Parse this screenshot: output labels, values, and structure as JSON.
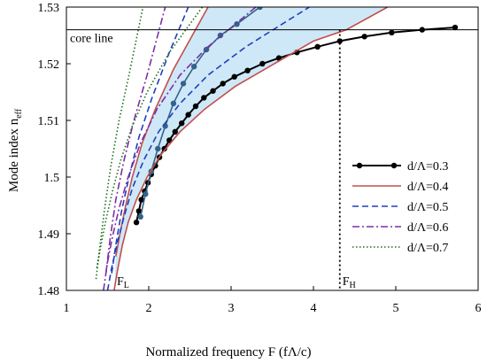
{
  "chart_data": {
    "type": "line",
    "xlabel": "Normalized frequency F (fΛ/c)",
    "ylabel": "Mode index n",
    "ylabel_sub": "eff",
    "xlim": [
      1,
      6
    ],
    "ylim": [
      1.48,
      1.53
    ],
    "xticks": [
      "1",
      "2",
      "3",
      "4",
      "5",
      "6"
    ],
    "yticks": [
      "1.48",
      "1.49",
      "1.5",
      "1.51",
      "1.52",
      "1.53"
    ],
    "grid": false,
    "legend_position": "right",
    "core_line": {
      "y": 1.526,
      "label": "core line"
    },
    "markers": [
      {
        "label": "F",
        "sub": "L",
        "x": 1.58
      },
      {
        "label": "F",
        "sub": "H",
        "x": 4.32
      }
    ],
    "shaded_band": {
      "lower": "d/Λ=0.4 right branch",
      "upper": "d/Λ=0.4 left branch",
      "color": "#cfe8f7"
    },
    "series": [
      {
        "name": "d/Λ=0.3",
        "color": "#000000",
        "style": "solid-marker",
        "x": [
          1.85,
          1.88,
          1.91,
          1.95,
          1.99,
          2.03,
          2.08,
          2.13,
          2.19,
          2.25,
          2.32,
          2.4,
          2.48,
          2.57,
          2.67,
          2.78,
          2.9,
          3.04,
          3.2,
          3.38,
          3.58,
          3.8,
          4.05,
          4.32,
          4.62,
          4.95,
          5.32,
          5.72
        ],
        "y": [
          1.492,
          1.494,
          1.496,
          1.4975,
          1.499,
          1.5005,
          1.502,
          1.5035,
          1.505,
          1.5065,
          1.508,
          1.5095,
          1.511,
          1.5125,
          1.514,
          1.5152,
          1.5165,
          1.5177,
          1.5188,
          1.52,
          1.521,
          1.522,
          1.523,
          1.524,
          1.5248,
          1.5255,
          1.526,
          1.5264
        ]
      },
      {
        "name": "d/Λ=0.3 (left branch)",
        "color": "#34628a",
        "style": "line-marker",
        "x": [
          1.9,
          1.96,
          2.03,
          2.11,
          2.2,
          2.3,
          2.42,
          2.55,
          2.7,
          2.87,
          3.07,
          3.35
        ],
        "y": [
          1.493,
          1.497,
          1.501,
          1.505,
          1.509,
          1.513,
          1.5165,
          1.5195,
          1.5225,
          1.525,
          1.527,
          1.53
        ]
      },
      {
        "name": "d/Λ=0.4",
        "color": "#c0504d",
        "style": "solid",
        "x": [
          1.58,
          1.62,
          1.68,
          1.75,
          1.85,
          1.98,
          2.15,
          2.38,
          2.68,
          3.05,
          3.5,
          4.0,
          4.4,
          4.9
        ],
        "y": [
          1.48,
          1.4835,
          1.488,
          1.492,
          1.496,
          1.5,
          1.504,
          1.508,
          1.512,
          1.516,
          1.5198,
          1.524,
          1.526,
          1.53
        ]
      },
      {
        "name": "d/Λ=0.4 (left branch)",
        "color": "#c0504d",
        "style": "solid",
        "x": [
          1.6,
          1.65,
          1.72,
          1.8,
          1.92,
          2.08,
          2.3,
          2.72
        ],
        "y": [
          1.486,
          1.49,
          1.495,
          1.5,
          1.506,
          1.512,
          1.519,
          1.53
        ]
      },
      {
        "name": "d/Λ=0.5",
        "color": "#1f3fbf",
        "style": "dashed",
        "x": [
          1.5,
          1.55,
          1.62,
          1.7,
          1.8,
          1.94,
          2.12,
          2.38,
          2.72,
          3.18,
          3.95
        ],
        "y": [
          1.48,
          1.484,
          1.4885,
          1.493,
          1.498,
          1.503,
          1.508,
          1.513,
          1.518,
          1.523,
          1.53
        ]
      },
      {
        "name": "d/Λ=0.5 (left branch)",
        "color": "#1f3fbf",
        "style": "dashed",
        "x": [
          1.55,
          1.6,
          1.67,
          1.76,
          1.88,
          2.04,
          2.25,
          2.48
        ],
        "y": [
          1.483,
          1.488,
          1.494,
          1.5,
          1.507,
          1.514,
          1.522,
          1.53
        ]
      },
      {
        "name": "d/Λ=0.6",
        "color": "#7b2fa6",
        "style": "dashdot",
        "x": [
          1.45,
          1.5,
          1.56,
          1.64,
          1.75,
          1.9,
          2.1,
          2.38,
          2.72,
          3.3
        ],
        "y": [
          1.48,
          1.485,
          1.4895,
          1.4945,
          1.5,
          1.506,
          1.512,
          1.518,
          1.523,
          1.53
        ]
      },
      {
        "name": "d/Λ=0.6 (left branch)",
        "color": "#7b2fa6",
        "style": "dashdot",
        "x": [
          1.48,
          1.53,
          1.6,
          1.7,
          1.82,
          1.98,
          2.2
        ],
        "y": [
          1.483,
          1.489,
          1.496,
          1.503,
          1.51,
          1.518,
          1.53
        ]
      },
      {
        "name": "d/Λ=0.7",
        "color": "#1a6e1a",
        "style": "dotted",
        "x": [
          1.37,
          1.42,
          1.48,
          1.56,
          1.66,
          1.8,
          1.98,
          2.25,
          2.65
        ],
        "y": [
          1.484,
          1.488,
          1.4925,
          1.4975,
          1.503,
          1.509,
          1.515,
          1.522,
          1.53
        ]
      },
      {
        "name": "d/Λ=0.7 (left branch)",
        "color": "#1a6e1a",
        "style": "dotted",
        "x": [
          1.36,
          1.4,
          1.46,
          1.54,
          1.64,
          1.76,
          1.93
        ],
        "y": [
          1.482,
          1.487,
          1.494,
          1.502,
          1.51,
          1.518,
          1.53
        ]
      }
    ],
    "legend": [
      {
        "label": "d/Λ=0.3",
        "series": 0
      },
      {
        "label": "d/Λ=0.4",
        "series": 2
      },
      {
        "label": "d/Λ=0.5",
        "series": 4
      },
      {
        "label": "d/Λ=0.6",
        "series": 6
      },
      {
        "label": "d/Λ=0.7",
        "series": 8
      }
    ]
  }
}
